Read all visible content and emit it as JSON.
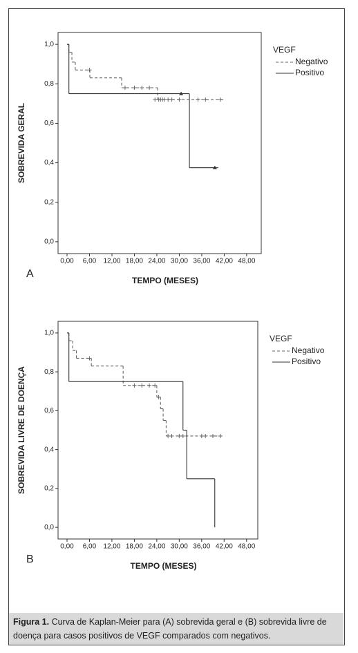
{
  "chart_data": [
    {
      "type": "step",
      "panel": "A",
      "x_label": "TEMPO (MESES)",
      "y_label": "SOBREVIDA GERAL",
      "legend_title": "VEGF",
      "legend": "top-right",
      "xlim": [
        -2.4,
        51.9
      ],
      "ylim": [
        -0.06,
        1.06
      ],
      "xticks": [
        {
          "value": 0,
          "label": "0,00"
        },
        {
          "value": 6,
          "label": "6,00"
        },
        {
          "value": 12,
          "label": "12,00"
        },
        {
          "value": 18,
          "label": "18,00"
        },
        {
          "value": 24,
          "label": "24,00"
        },
        {
          "value": 30,
          "label": "30,00"
        },
        {
          "value": 36,
          "label": "36,00"
        },
        {
          "value": 42,
          "label": "42,00"
        },
        {
          "value": 48,
          "label": "48,00"
        }
      ],
      "yticks": [
        {
          "value": 0,
          "label": "0,0"
        },
        {
          "value": 0.2,
          "label": "0,2"
        },
        {
          "value": 0.4,
          "label": "0,4"
        },
        {
          "value": 0.6,
          "label": "0,6"
        },
        {
          "value": 0.8,
          "label": "0,8"
        },
        {
          "value": 1,
          "label": "1,0"
        }
      ],
      "series": [
        {
          "name": "Negativo",
          "color": "#666666",
          "dash": true,
          "x": [
            0,
            0.5,
            1.3,
            2.2,
            6.1,
            14.6,
            24.2,
            42
          ],
          "values": [
            1,
            0.96,
            0.91,
            0.87,
            0.83,
            0.78,
            0.72,
            0.72
          ],
          "censored_x": [
            6,
            15.5,
            18,
            20,
            22,
            23.5,
            24.5,
            25,
            25.5,
            26,
            27,
            28,
            30,
            35,
            37,
            41
          ],
          "censored_values": [
            0.87,
            0.78,
            0.78,
            0.78,
            0.78,
            0.72,
            0.72,
            0.72,
            0.72,
            0.72,
            0.72,
            0.72,
            0.72,
            0.72,
            0.72,
            0.72
          ]
        },
        {
          "name": "Positivo",
          "color": "#333333",
          "dash": false,
          "x": [
            0,
            0.5,
            32.7,
            40.4
          ],
          "values": [
            1,
            0.75,
            0.375,
            0.375
          ],
          "censored_x": [
            30.5,
            39.5
          ],
          "censored_values": [
            0.75,
            0.375
          ]
        }
      ]
    },
    {
      "type": "step",
      "panel": "B",
      "x_label": "TEMPO (MESES)",
      "y_label": "SOBREVIDA LIVRE DE DOENÇA",
      "legend_title": "VEGF",
      "legend": "top-right",
      "xlim": [
        -2.4,
        51
      ],
      "ylim": [
        -0.06,
        1.06
      ],
      "xticks": [
        {
          "value": 0,
          "label": "0,00"
        },
        {
          "value": 6,
          "label": "6,00"
        },
        {
          "value": 12,
          "label": "12,00"
        },
        {
          "value": 18,
          "label": "18,00"
        },
        {
          "value": 24,
          "label": "24,00"
        },
        {
          "value": 30,
          "label": "30,00"
        },
        {
          "value": 36,
          "label": "36,00"
        },
        {
          "value": 42,
          "label": "42,00"
        },
        {
          "value": 48,
          "label": "48,00"
        }
      ],
      "yticks": [
        {
          "value": 0,
          "label": "0,0"
        },
        {
          "value": 0.2,
          "label": "0,2"
        },
        {
          "value": 0.4,
          "label": "0,4"
        },
        {
          "value": 0.6,
          "label": "0,6"
        },
        {
          "value": 0.8,
          "label": "0,8"
        },
        {
          "value": 1,
          "label": "1,0"
        }
      ],
      "series": [
        {
          "name": "Negativo",
          "color": "#666666",
          "dash": true,
          "x": [
            0,
            0.5,
            1.5,
            2.5,
            6.5,
            15,
            24,
            25,
            25.7,
            26.5,
            41.5
          ],
          "values": [
            1,
            0.96,
            0.91,
            0.87,
            0.83,
            0.73,
            0.67,
            0.61,
            0.55,
            0.47,
            0.47
          ],
          "censored_x": [
            6,
            18,
            20,
            22,
            23.5,
            24.5,
            27,
            28,
            30,
            31,
            36,
            37,
            39,
            41
          ],
          "censored_values": [
            0.87,
            0.73,
            0.73,
            0.73,
            0.73,
            0.67,
            0.47,
            0.47,
            0.47,
            0.47,
            0.47,
            0.47,
            0.47,
            0.47
          ]
        },
        {
          "name": "Positivo",
          "color": "#333333",
          "dash": false,
          "x": [
            0,
            0.5,
            31,
            32,
            39.5
          ],
          "values": [
            1,
            0.75,
            0.5,
            0.25,
            0
          ],
          "censored_x": [],
          "censored_values": []
        }
      ]
    }
  ],
  "caption": {
    "label": "Figura 1.",
    "text": " Curva de Kaplan-Meier para (A) sobrevida geral e (B) sobrevida livre de doença para casos positivos de VEGF comparados com negativos."
  }
}
